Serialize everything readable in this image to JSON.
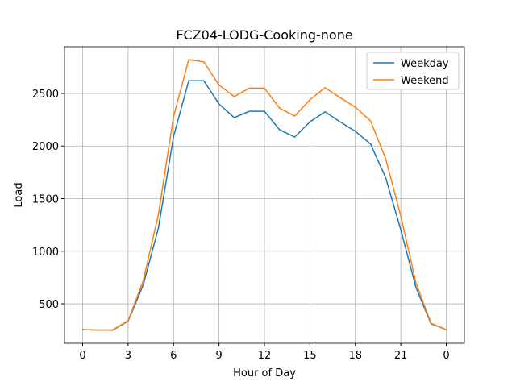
{
  "chart_data": {
    "type": "line",
    "title": "FCZ04-LODG-Cooking-none",
    "x_label": "Hour of Day",
    "y_label": "Load",
    "x": [
      0,
      1,
      2,
      3,
      4,
      5,
      6,
      7,
      8,
      9,
      10,
      11,
      12,
      13,
      14,
      15,
      16,
      17,
      18,
      19,
      20,
      21,
      22,
      23,
      24
    ],
    "series": [
      {
        "name": "Weekday",
        "color": "#1f77b4",
        "values": [
          255,
          250,
          250,
          335,
          680,
          1220,
          2090,
          2620,
          2620,
          2400,
          2270,
          2330,
          2330,
          2155,
          2085,
          2230,
          2325,
          2230,
          2140,
          2020,
          1700,
          1205,
          655,
          310,
          255
        ]
      },
      {
        "name": "Weekend",
        "color": "#ff7f0e",
        "values": [
          255,
          250,
          252,
          340,
          720,
          1350,
          2280,
          2820,
          2800,
          2580,
          2470,
          2550,
          2550,
          2360,
          2285,
          2440,
          2555,
          2460,
          2370,
          2240,
          1880,
          1335,
          700,
          315,
          255
        ]
      }
    ],
    "xlim": [
      -1.2,
      25.2
    ],
    "ylim": [
      125,
      2944
    ],
    "xticks": [
      0,
      3,
      6,
      9,
      12,
      15,
      18,
      21,
      {
        "value": 24,
        "label": "0"
      }
    ],
    "yticks": [
      500,
      1000,
      1500,
      2000,
      2500
    ],
    "grid": true,
    "legend": "upper-right"
  }
}
